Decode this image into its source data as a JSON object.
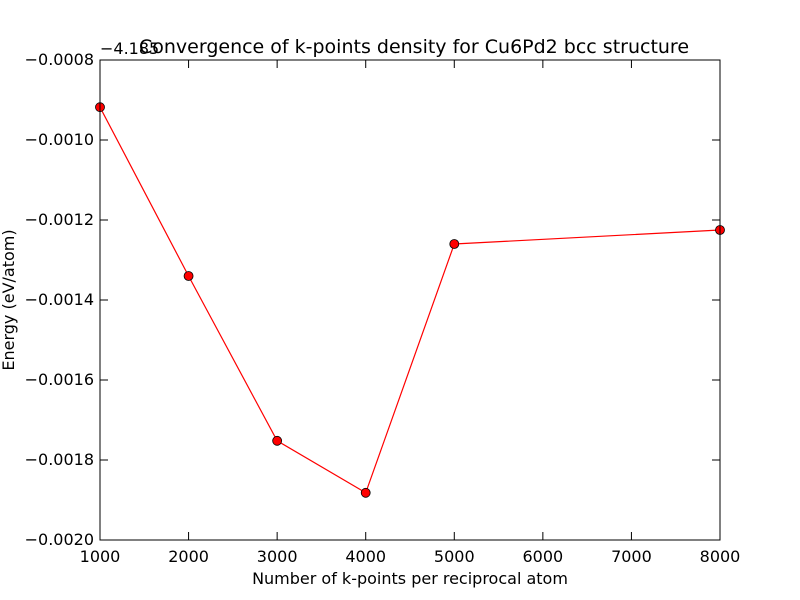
{
  "chart_data": {
    "type": "line",
    "title": "Convergence of k-points density for Cu6Pd2 bcc structure",
    "xlabel": "Number of k-points per reciprocal atom",
    "ylabel": "Energy (eV/atom)",
    "y_offset_label": "−4.185",
    "xlim": [
      1000,
      8000
    ],
    "ylim": [
      -0.002,
      -0.0008
    ],
    "grid": false,
    "x_ticks": [
      1000,
      2000,
      3000,
      4000,
      5000,
      6000,
      7000,
      8000
    ],
    "x_tick_labels": [
      "1000",
      "2000",
      "3000",
      "4000",
      "5000",
      "6000",
      "7000",
      "8000"
    ],
    "y_ticks": [
      -0.002,
      -0.0018,
      -0.0016,
      -0.0014,
      -0.0012,
      -0.001,
      -0.0008
    ],
    "y_tick_labels": [
      "−0.0020",
      "−0.0018",
      "−0.0016",
      "−0.0014",
      "−0.0012",
      "−0.0010",
      "−0.0008"
    ],
    "series": [
      {
        "color": "#ff0000",
        "marker": "circle",
        "x": [
          1000,
          2000,
          3000,
          4000,
          5000,
          8000
        ],
        "y": [
          -0.000918,
          -0.00134,
          -0.001752,
          -0.001882,
          -0.00126,
          -0.001225
        ]
      }
    ]
  }
}
